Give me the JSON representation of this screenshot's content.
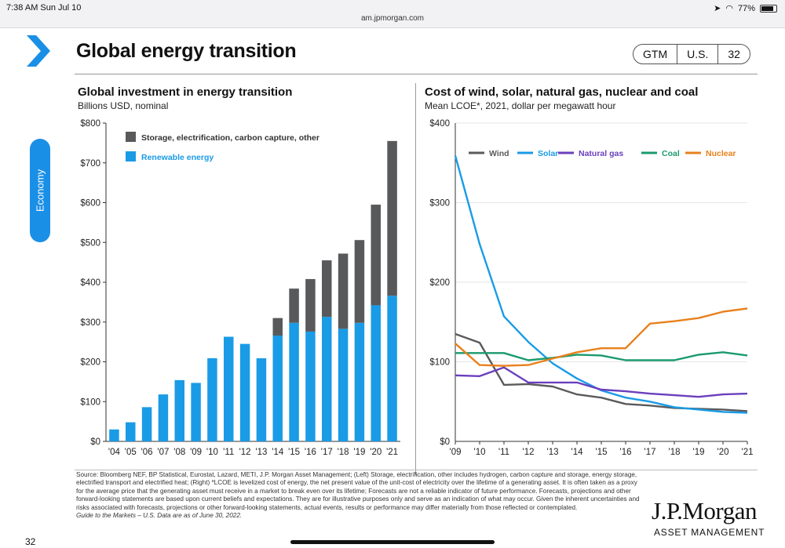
{
  "statusbar": {
    "time": "7:38 AM   Sun Jul 10",
    "url": "am.jpmorgan.com",
    "battery": "77%"
  },
  "slide": {
    "title": "Global energy transition",
    "tags": [
      "GTM",
      "U.S.",
      "32"
    ],
    "sidebar_tab": "Economy",
    "page_number": "32",
    "logo_line1": "J.P.Morgan",
    "logo_line2": "ASSET MANAGEMENT",
    "source": "Source: Bloomberg NEF, BP Statistical, Eurostat, Lazard, METI, J.P. Morgan Asset Management; (Left) Storage, electrification, other includes hydrogen, carbon capture and storage, energy storage, electrified transport and electrified heat; (Right) *LCOE is levelized cost of energy, the net present value of the unit-cost of electricity over the lifetime of a generating asset. It is often taken as a proxy for the average price that the generating asset must receive in a market to break even over its lifetime; Forecasts are not a reliable indicator of future performance. Forecasts, projections and other forward-looking statements are based upon current beliefs and expectations. They are for illustrative purposes only and serve as an indication of what may occur. Given the inherent uncertainties and risks associated with forecasts, projections or other forward-looking statements, actual events, results or performance may differ materially from those reflected or contemplated.",
    "guide_note": "Guide to the Markets – U.S. Data are as of June 30, 2022."
  },
  "colors": {
    "renewable": "#1a9be6",
    "storage": "#58595b",
    "wind": "#5a5a5a",
    "solar": "#1a9be6",
    "natural_gas": "#6a3fbd",
    "coal": "#1a9a6c",
    "nuclear": "#e8801c",
    "accent": "#1a8fe6"
  },
  "chart_data": [
    {
      "type": "bar",
      "stacked": true,
      "title": "Global investment in energy transition",
      "subtitle": "Billions USD, nominal",
      "categories": [
        "'04",
        "'05",
        "'06",
        "'07",
        "'08",
        "'09",
        "'10",
        "'11",
        "'12",
        "'13",
        "'14",
        "'15",
        "'16",
        "'17",
        "'18",
        "'19",
        "'20",
        "'21"
      ],
      "ylim": [
        0,
        800
      ],
      "yticks": [
        "$0",
        "$100",
        "$200",
        "$300",
        "$400",
        "$500",
        "$600",
        "$700",
        "$800"
      ],
      "legend_position": "top-left",
      "series": [
        {
          "name": "Renewable energy",
          "values": [
            30,
            48,
            86,
            118,
            154,
            147,
            209,
            263,
            245,
            209,
            266,
            298,
            276,
            313,
            283,
            298,
            342,
            366
          ]
        },
        {
          "name": "Storage, electrification, carbon capture, other",
          "values": [
            0,
            0,
            0,
            0,
            0,
            0,
            0,
            0,
            0,
            0,
            44,
            86,
            132,
            142,
            189,
            208,
            253,
            389
          ]
        }
      ]
    },
    {
      "type": "line",
      "title": "Cost of wind, solar, natural gas, nuclear and coal",
      "subtitle": "Mean LCOE*, 2021, dollar per megawatt hour",
      "x": [
        "'09",
        "'10",
        "'11",
        "'12",
        "'13",
        "'14",
        "'15",
        "'16",
        "'17",
        "'18",
        "'19",
        "'20",
        "'21"
      ],
      "ylim": [
        0,
        400
      ],
      "yticks": [
        "$0",
        "$100",
        "$200",
        "$300",
        "$400"
      ],
      "legend_position": "top",
      "series": [
        {
          "name": "Wind",
          "values": [
            135,
            124,
            71,
            72,
            69,
            59,
            55,
            47,
            45,
            42,
            41,
            40,
            38
          ]
        },
        {
          "name": "Solar",
          "values": [
            359,
            248,
            157,
            125,
            98,
            79,
            64,
            55,
            50,
            43,
            40,
            37,
            36
          ]
        },
        {
          "name": "Natural gas",
          "values": [
            83,
            82,
            93,
            74,
            74,
            74,
            65,
            63,
            60,
            58,
            56,
            59,
            60
          ]
        },
        {
          "name": "Coal",
          "values": [
            111,
            111,
            111,
            102,
            105,
            109,
            108,
            102,
            102,
            102,
            109,
            112,
            108
          ]
        },
        {
          "name": "Nuclear",
          "values": [
            123,
            96,
            95,
            96,
            104,
            112,
            117,
            117,
            148,
            151,
            155,
            163,
            167
          ]
        }
      ]
    }
  ]
}
